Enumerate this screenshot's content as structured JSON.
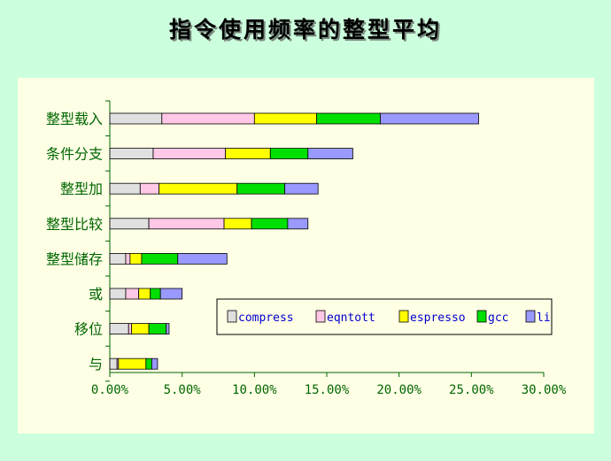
{
  "title": "指令使用频率的整型平均",
  "chart_data": {
    "type": "bar",
    "orientation": "horizontal",
    "stacked": true,
    "categories": [
      "整型载入",
      "条件分支",
      "整型加",
      "整型比较",
      "整型储存",
      "或",
      "移位",
      "与"
    ],
    "series": [
      {
        "name": "compress",
        "color": "#e0e0e0",
        "values": [
          3.6,
          3.0,
          2.1,
          2.7,
          1.1,
          1.1,
          1.3,
          0.5
        ]
      },
      {
        "name": "eqntott",
        "color": "#ffc8e6",
        "values": [
          6.4,
          5.0,
          1.3,
          5.2,
          0.3,
          0.9,
          0.2,
          0.1
        ]
      },
      {
        "name": "espresso",
        "color": "#ffff00",
        "values": [
          4.3,
          3.1,
          5.4,
          1.9,
          0.8,
          0.8,
          1.2,
          1.9
        ]
      },
      {
        "name": "gcc",
        "color": "#00e000",
        "values": [
          4.4,
          2.6,
          3.3,
          2.5,
          2.5,
          0.7,
          1.2,
          0.4
        ]
      },
      {
        "name": "li",
        "color": "#9999ff",
        "values": [
          6.8,
          3.1,
          2.3,
          1.4,
          3.4,
          1.5,
          0.2,
          0.4
        ]
      }
    ],
    "xlim": [
      0,
      30
    ],
    "xticks": [
      "0.00%",
      "5.00%",
      "10.00%",
      "15.00%",
      "20.00%",
      "25.00%",
      "30.00%"
    ],
    "legend_position": "center-right",
    "grid": false
  }
}
